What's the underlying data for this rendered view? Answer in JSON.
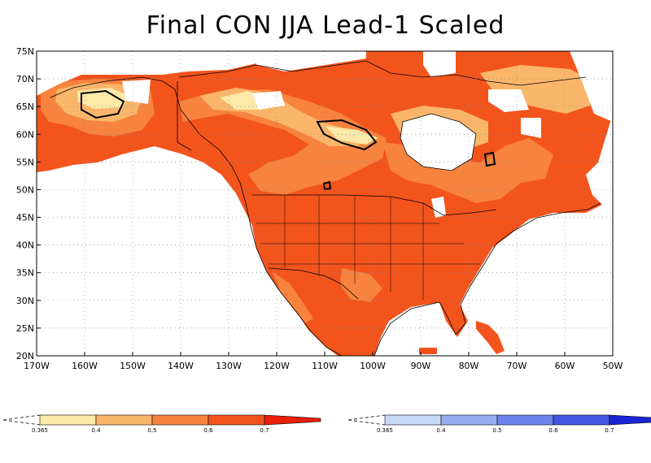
{
  "title": "Final CON JJA Lead-1 Scaled",
  "map": {
    "lat_labels": [
      "75N",
      "70N",
      "65N",
      "60N",
      "55N",
      "50N",
      "45N",
      "40N",
      "35N",
      "30N",
      "25N",
      "20N"
    ],
    "lat_values": [
      75,
      70,
      65,
      60,
      55,
      50,
      45,
      40,
      35,
      30,
      25,
      20
    ],
    "lon_labels": [
      "170W",
      "160W",
      "150W",
      "140W",
      "130W",
      "120W",
      "110W",
      "100W",
      "90W",
      "80W",
      "70W",
      "60W",
      "50W"
    ],
    "lon_values": [
      -170,
      -160,
      -150,
      -140,
      -130,
      -120,
      -110,
      -100,
      -90,
      -80,
      -70,
      -60,
      -50
    ],
    "lon_range": [
      -170,
      -50
    ],
    "lat_range": [
      20,
      75
    ],
    "grid": "dotted"
  },
  "colorbar_warm": {
    "labels": [
      "0.365",
      "0.4",
      "0.5",
      "0.6",
      "0.7"
    ],
    "colors": [
      "#fde9a8",
      "#f9b66a",
      "#f7833e",
      "#f3541c",
      "#e8200c"
    ]
  },
  "colorbar_cool": {
    "labels": [
      "0.365",
      "0.4",
      "0.5",
      "0.6",
      "0.7"
    ],
    "colors": [
      "#c8d9f7",
      "#96aef0",
      "#6b83ea",
      "#4456e2",
      "#1a26d6"
    ]
  }
}
